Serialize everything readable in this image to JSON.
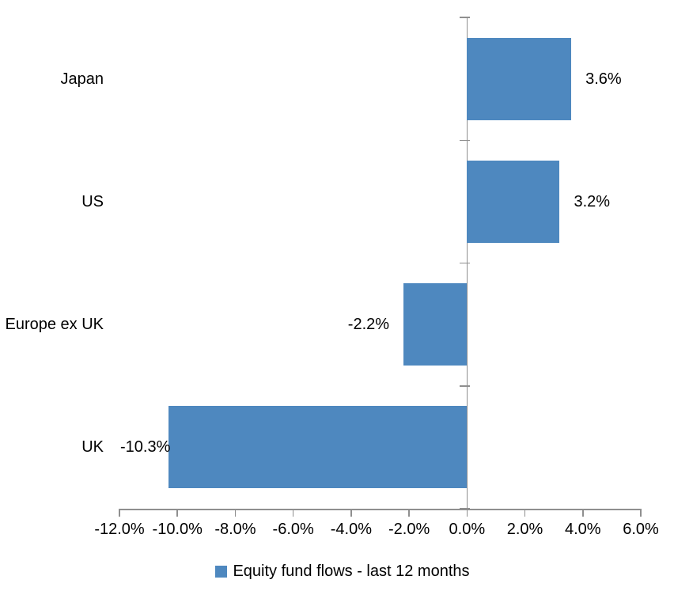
{
  "chart_data": {
    "type": "bar",
    "orientation": "horizontal",
    "title": "",
    "categories": [
      "Japan",
      "US",
      "Europe ex UK",
      "UK"
    ],
    "series": [
      {
        "name": "Equity fund flows - last 12 months",
        "values": [
          3.6,
          3.2,
          -2.2,
          -10.3
        ],
        "data_labels": [
          "3.6%",
          "3.2%",
          "-2.2%",
          "-10.3%"
        ]
      }
    ],
    "xlim": [
      -12,
      6
    ],
    "x_tick_step": 2,
    "x_tick_labels": [
      "-12.0%",
      "-10.0%",
      "-8.0%",
      "-6.0%",
      "-4.0%",
      "-2.0%",
      "0.0%",
      "2.0%",
      "4.0%",
      "6.0%"
    ],
    "grid": false,
    "legend_position": "bottom",
    "legend": {
      "marker_color": "#4E88BF",
      "label": "Equity fund flows - last 12 months"
    },
    "bar_color": "#4E88BF",
    "axis_color": "#8F8F8F",
    "text_color": "#000000"
  }
}
